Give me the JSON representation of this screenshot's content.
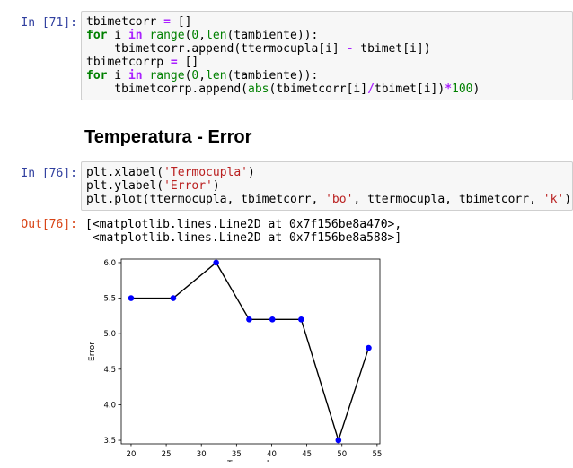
{
  "cells": [
    {
      "prompt": "In [71]:",
      "lines": [
        [
          {
            "t": "tbimetcorr "
          },
          {
            "t": "=",
            "c": "op"
          },
          {
            "t": " []"
          }
        ],
        [
          {
            "t": "for",
            "c": "kw"
          },
          {
            "t": " i "
          },
          {
            "t": "in",
            "c": "op"
          },
          {
            "t": " "
          },
          {
            "t": "range",
            "c": "bi"
          },
          {
            "t": "("
          },
          {
            "t": "0",
            "c": "num"
          },
          {
            "t": ","
          },
          {
            "t": "len",
            "c": "bi"
          },
          {
            "t": "(tambiente)):"
          }
        ],
        [
          {
            "t": "    tbimetcorr.append(ttermocupla[i] "
          },
          {
            "t": "-",
            "c": "op"
          },
          {
            "t": " tbimet[i])"
          }
        ],
        [
          {
            "t": "tbimetcorrp "
          },
          {
            "t": "=",
            "c": "op"
          },
          {
            "t": " []"
          }
        ],
        [
          {
            "t": "for",
            "c": "kw"
          },
          {
            "t": " i "
          },
          {
            "t": "in",
            "c": "op"
          },
          {
            "t": " "
          },
          {
            "t": "range",
            "c": "bi"
          },
          {
            "t": "("
          },
          {
            "t": "0",
            "c": "num"
          },
          {
            "t": ","
          },
          {
            "t": "len",
            "c": "bi"
          },
          {
            "t": "(tambiente)):"
          }
        ],
        [
          {
            "t": "    tbimetcorrp.append("
          },
          {
            "t": "abs",
            "c": "bi"
          },
          {
            "t": "(tbimetcorr[i]"
          },
          {
            "t": "/",
            "c": "op"
          },
          {
            "t": "tbimet[i])"
          },
          {
            "t": "*",
            "c": "op"
          },
          {
            "t": "100",
            "c": "num"
          },
          {
            "t": ")"
          }
        ]
      ]
    },
    {
      "prompt": "In [76]:",
      "lines": [
        [
          {
            "t": "plt.xlabel("
          },
          {
            "t": "'Termocupla'",
            "c": "str"
          },
          {
            "t": ")"
          }
        ],
        [
          {
            "t": "plt.ylabel("
          },
          {
            "t": "'Error'",
            "c": "str"
          },
          {
            "t": ")"
          }
        ],
        [
          {
            "t": "plt.plot(ttermocupla, tbimetcorr, "
          },
          {
            "t": "'bo'",
            "c": "str"
          },
          {
            "t": ", ttermocupla, tbimetcorr, "
          },
          {
            "t": "'k'",
            "c": "str"
          },
          {
            "t": ")"
          }
        ]
      ]
    }
  ],
  "heading": "Temperatura - Error",
  "output": {
    "prompt": "Out[76]:",
    "text": "[<matplotlib.lines.Line2D at 0x7f156be8a470>,\n <matplotlib.lines.Line2D at 0x7f156be8a588>]"
  },
  "chart_data": {
    "type": "line",
    "xlabel": "Termocupla",
    "ylabel": "Error",
    "xlim": [
      18.6,
      55.4
    ],
    "ylim": [
      3.45,
      6.05
    ],
    "xticks": [
      20,
      25,
      30,
      35,
      40,
      45,
      50,
      55
    ],
    "yticks": [
      3.5,
      4.0,
      4.5,
      5.0,
      5.5,
      6.0
    ],
    "x": [
      20.0,
      26.0,
      32.1,
      36.8,
      40.1,
      44.2,
      49.5,
      53.8
    ],
    "y": [
      5.5,
      5.5,
      6.0,
      5.2,
      5.2,
      5.2,
      3.5,
      4.8
    ],
    "marker_color": "#0000ff",
    "line_color": "#000000",
    "grid": false
  }
}
